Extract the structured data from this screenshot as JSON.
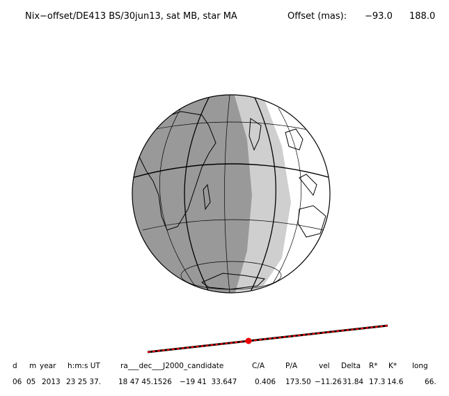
{
  "header": {
    "title": "Nix−offset/DE413 BS/30jun13, sat MB, star MA",
    "offset_label": "Offset (mas):",
    "offset_values": [
      "−93.0",
      "188.0"
    ]
  },
  "table": {
    "columns": [
      "d",
      "m",
      "year",
      "h:m:s UT",
      "ra___dec___J2000_candidate",
      "C/A",
      "P/A",
      "vel",
      "Delta",
      "R*",
      "K*",
      "long"
    ],
    "row": [
      "06",
      "05",
      "2013",
      "23 25 37.",
      "18 47 45.1526",
      "−19 41  33.647",
      "0.406",
      "173.50",
      "−11.26",
      "31.84",
      "17.3",
      "14.6",
      "66."
    ]
  }
}
